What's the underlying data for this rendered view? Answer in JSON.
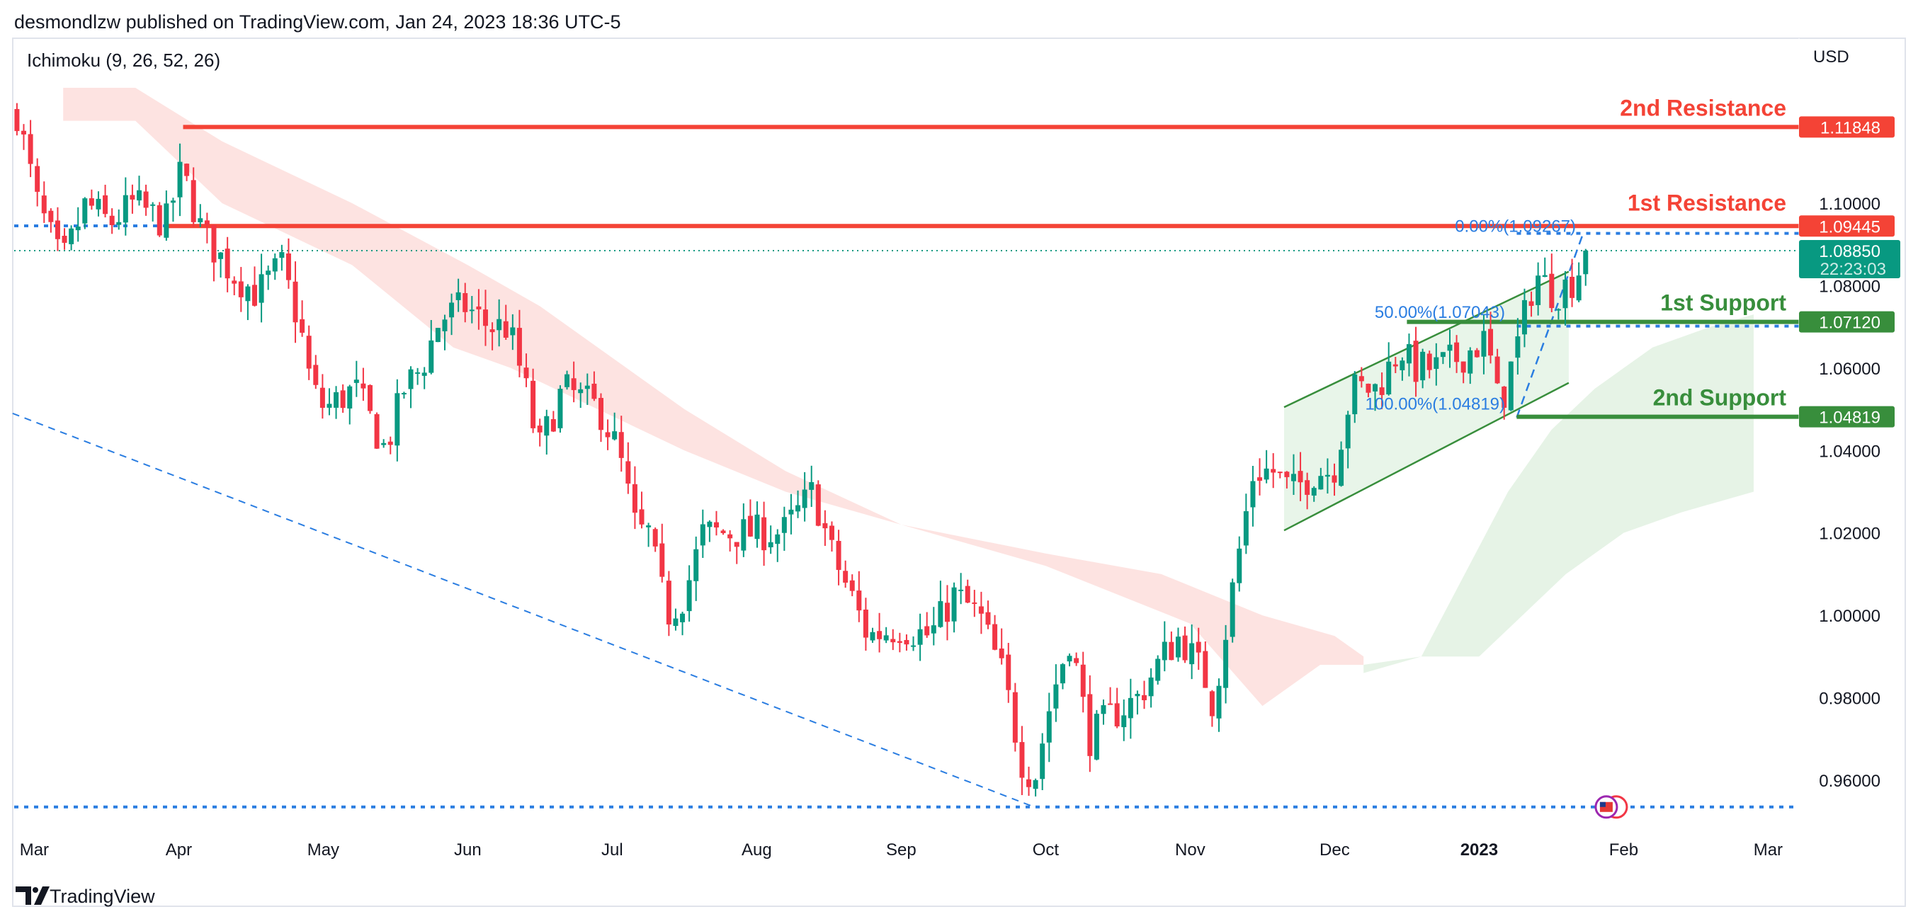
{
  "header": {
    "published": "desmondlzw published on TradingView.com, Jan 24, 2023 18:36 UTC-5",
    "indicator": "Ichimoku (9, 26, 52, 26)",
    "currency": "USD",
    "brand": "TradingView"
  },
  "colors": {
    "up": "#089981",
    "down": "#f23645",
    "resistance": "#f44336",
    "support": "#388e3c",
    "fib": "#2a7de1",
    "cloud_red": "#fde3e1",
    "cloud_green": "#e6f3e6",
    "channel": "#e8f5e9"
  },
  "chart_data": {
    "type": "candlestick",
    "symbol_units": "USD",
    "x_unit": "months since Mar 2022",
    "ylim": [
      0.9475,
      1.133
    ],
    "y_ticks": [
      "1.10000",
      "1.08000",
      "1.06000",
      "1.04000",
      "1.02000",
      "1.00000",
      "0.98000",
      "0.96000"
    ],
    "y_tick_values": [
      1.1,
      1.08,
      1.06,
      1.04,
      1.02,
      1.0,
      0.98,
      0.96
    ],
    "x_ticks": [
      {
        "t": 0,
        "label": "Mar"
      },
      {
        "t": 1,
        "label": "Apr"
      },
      {
        "t": 2,
        "label": "May"
      },
      {
        "t": 3,
        "label": "Jun"
      },
      {
        "t": 4,
        "label": "Jul"
      },
      {
        "t": 5,
        "label": "Aug"
      },
      {
        "t": 6,
        "label": "Sep"
      },
      {
        "t": 7,
        "label": "Oct"
      },
      {
        "t": 8,
        "label": "Nov"
      },
      {
        "t": 9,
        "label": "Dec"
      },
      {
        "t": 10,
        "label": "2023",
        "bold": true
      },
      {
        "t": 11,
        "label": "Feb"
      },
      {
        "t": 12,
        "label": "Mar"
      }
    ],
    "price_path": [
      [
        -0.12,
        1.122
      ],
      [
        0.02,
        1.1
      ],
      [
        0.19,
        1.085
      ],
      [
        0.36,
        1.1
      ],
      [
        0.52,
        1.095
      ],
      [
        0.69,
        1.1
      ],
      [
        0.91,
        1.095
      ],
      [
        1.02,
        1.108
      ],
      [
        1.16,
        1.093
      ],
      [
        1.37,
        1.083
      ],
      [
        1.54,
        1.078
      ],
      [
        1.71,
        1.085
      ],
      [
        1.84,
        1.07
      ],
      [
        1.92,
        1.055
      ],
      [
        2.01,
        1.05
      ],
      [
        2.22,
        1.055
      ],
      [
        2.43,
        1.04
      ],
      [
        2.56,
        1.055
      ],
      [
        2.68,
        1.06
      ],
      [
        2.81,
        1.072
      ],
      [
        2.98,
        1.075
      ],
      [
        3.15,
        1.07
      ],
      [
        3.28,
        1.07
      ],
      [
        3.4,
        1.055
      ],
      [
        3.49,
        1.04
      ],
      [
        3.66,
        1.055
      ],
      [
        3.91,
        1.05
      ],
      [
        4.04,
        1.04
      ],
      [
        4.17,
        1.02
      ],
      [
        4.25,
        1.02
      ],
      [
        4.38,
        1.0
      ],
      [
        4.5,
        1.005
      ],
      [
        4.63,
        1.02
      ],
      [
        4.84,
        1.02
      ],
      [
        5.01,
        1.02
      ],
      [
        5.18,
        1.02
      ],
      [
        5.39,
        1.03
      ],
      [
        5.52,
        1.015
      ],
      [
        5.65,
        1.005
      ],
      [
        5.77,
        0.995
      ],
      [
        5.99,
        0.997
      ],
      [
        6.2,
        0.995
      ],
      [
        6.37,
        1.005
      ],
      [
        6.54,
        1.0
      ],
      [
        6.71,
        0.985
      ],
      [
        6.83,
        0.965
      ],
      [
        6.92,
        0.96
      ],
      [
        7.04,
        0.98
      ],
      [
        7.17,
        0.995
      ],
      [
        7.3,
        0.97
      ],
      [
        7.43,
        0.975
      ],
      [
        7.64,
        0.98
      ],
      [
        7.81,
        0.99
      ],
      [
        7.93,
        0.995
      ],
      [
        8.1,
        0.985
      ],
      [
        8.16,
        0.978
      ],
      [
        8.31,
        1.01
      ],
      [
        8.44,
        1.035
      ],
      [
        8.57,
        1.035
      ],
      [
        8.7,
        1.03
      ],
      [
        8.87,
        1.035
      ],
      [
        8.99,
        1.035
      ],
      [
        9.12,
        1.055
      ],
      [
        9.29,
        1.055
      ],
      [
        9.46,
        1.065
      ],
      [
        9.54,
        1.06
      ],
      [
        9.71,
        1.06
      ],
      [
        9.88,
        1.063
      ],
      [
        10.05,
        1.067
      ],
      [
        10.14,
        1.05
      ],
      [
        10.26,
        1.065
      ],
      [
        10.39,
        1.083
      ],
      [
        10.52,
        1.078
      ],
      [
        10.64,
        1.081
      ],
      [
        10.77,
        1.0885
      ]
    ],
    "last_price": "1.08850",
    "countdown": "22:23:03",
    "cloud_red_upper": [
      [
        0.2,
        1.128
      ],
      [
        0.7,
        1.128
      ],
      [
        1.3,
        1.115
      ],
      [
        2.2,
        1.1
      ],
      [
        3.0,
        1.085
      ],
      [
        3.5,
        1.075
      ],
      [
        4.5,
        1.05
      ],
      [
        5.2,
        1.035
      ],
      [
        6.0,
        1.022
      ],
      [
        7.0,
        1.015
      ],
      [
        7.8,
        1.01
      ],
      [
        8.5,
        1.0
      ],
      [
        9.0,
        0.995
      ],
      [
        9.2,
        0.99
      ]
    ],
    "cloud_red_lower": [
      [
        0.2,
        1.12
      ],
      [
        0.7,
        1.12
      ],
      [
        1.3,
        1.1
      ],
      [
        2.2,
        1.085
      ],
      [
        2.9,
        1.065
      ],
      [
        3.3,
        1.06
      ],
      [
        4.5,
        1.04
      ],
      [
        5.2,
        1.03
      ],
      [
        6.0,
        1.022
      ],
      [
        7.0,
        1.012
      ],
      [
        8.0,
        0.998
      ],
      [
        8.5,
        0.978
      ],
      [
        8.9,
        0.988
      ],
      [
        9.2,
        0.988
      ]
    ],
    "cloud_green_upper": [
      [
        9.2,
        0.988
      ],
      [
        9.6,
        0.99
      ],
      [
        9.9,
        1.01
      ],
      [
        10.2,
        1.03
      ],
      [
        10.5,
        1.045
      ],
      [
        10.8,
        1.055
      ],
      [
        11.2,
        1.065
      ],
      [
        11.6,
        1.07
      ],
      [
        11.9,
        1.073
      ]
    ],
    "cloud_green_lower": [
      [
        9.2,
        0.986
      ],
      [
        9.6,
        0.99
      ],
      [
        10.0,
        0.99
      ],
      [
        10.3,
        1.0
      ],
      [
        10.6,
        1.01
      ],
      [
        11.0,
        1.02
      ],
      [
        11.4,
        1.025
      ],
      [
        11.9,
        1.03
      ]
    ],
    "levels": [
      {
        "name": "2nd Resistance",
        "value": "1.11848",
        "price": 1.11848,
        "from": 1.03,
        "kind": "resistance"
      },
      {
        "name": "1st Resistance",
        "value": "1.09445",
        "price": 1.09445,
        "from": 0.91,
        "kind": "resistance"
      },
      {
        "name": "1st Support",
        "value": "1.07120",
        "price": 1.0712,
        "from": 9.5,
        "kind": "support"
      },
      {
        "name": "2nd Support",
        "value": "1.04819",
        "price": 1.04819,
        "from": 10.26,
        "kind": "support"
      }
    ],
    "fib": [
      {
        "label": "0.00%(1.09267)",
        "price": 1.09267
      },
      {
        "label": "50.00%(1.07043)",
        "price": 1.07043
      },
      {
        "label": "100.00%(1.04819)",
        "price": 1.04819
      }
    ],
    "dotted_levels": [
      1.0945,
      1.09267,
      1.0712,
      1.04819,
      0.9535
    ],
    "trendline": [
      [
        -0.15,
        1.049
      ],
      [
        6.92,
        0.9535
      ]
    ],
    "fib_trend": [
      [
        10.26,
        1.048
      ],
      [
        10.72,
        1.0927
      ]
    ],
    "channel": {
      "lower": [
        [
          8.65,
          1.0206
        ],
        [
          10.62,
          1.0564
        ]
      ],
      "upper": [
        [
          8.65,
          1.0505
        ],
        [
          10.62,
          1.0834
        ]
      ]
    },
    "event_flag": {
      "t": 10.88,
      "price": 0.9535
    }
  }
}
